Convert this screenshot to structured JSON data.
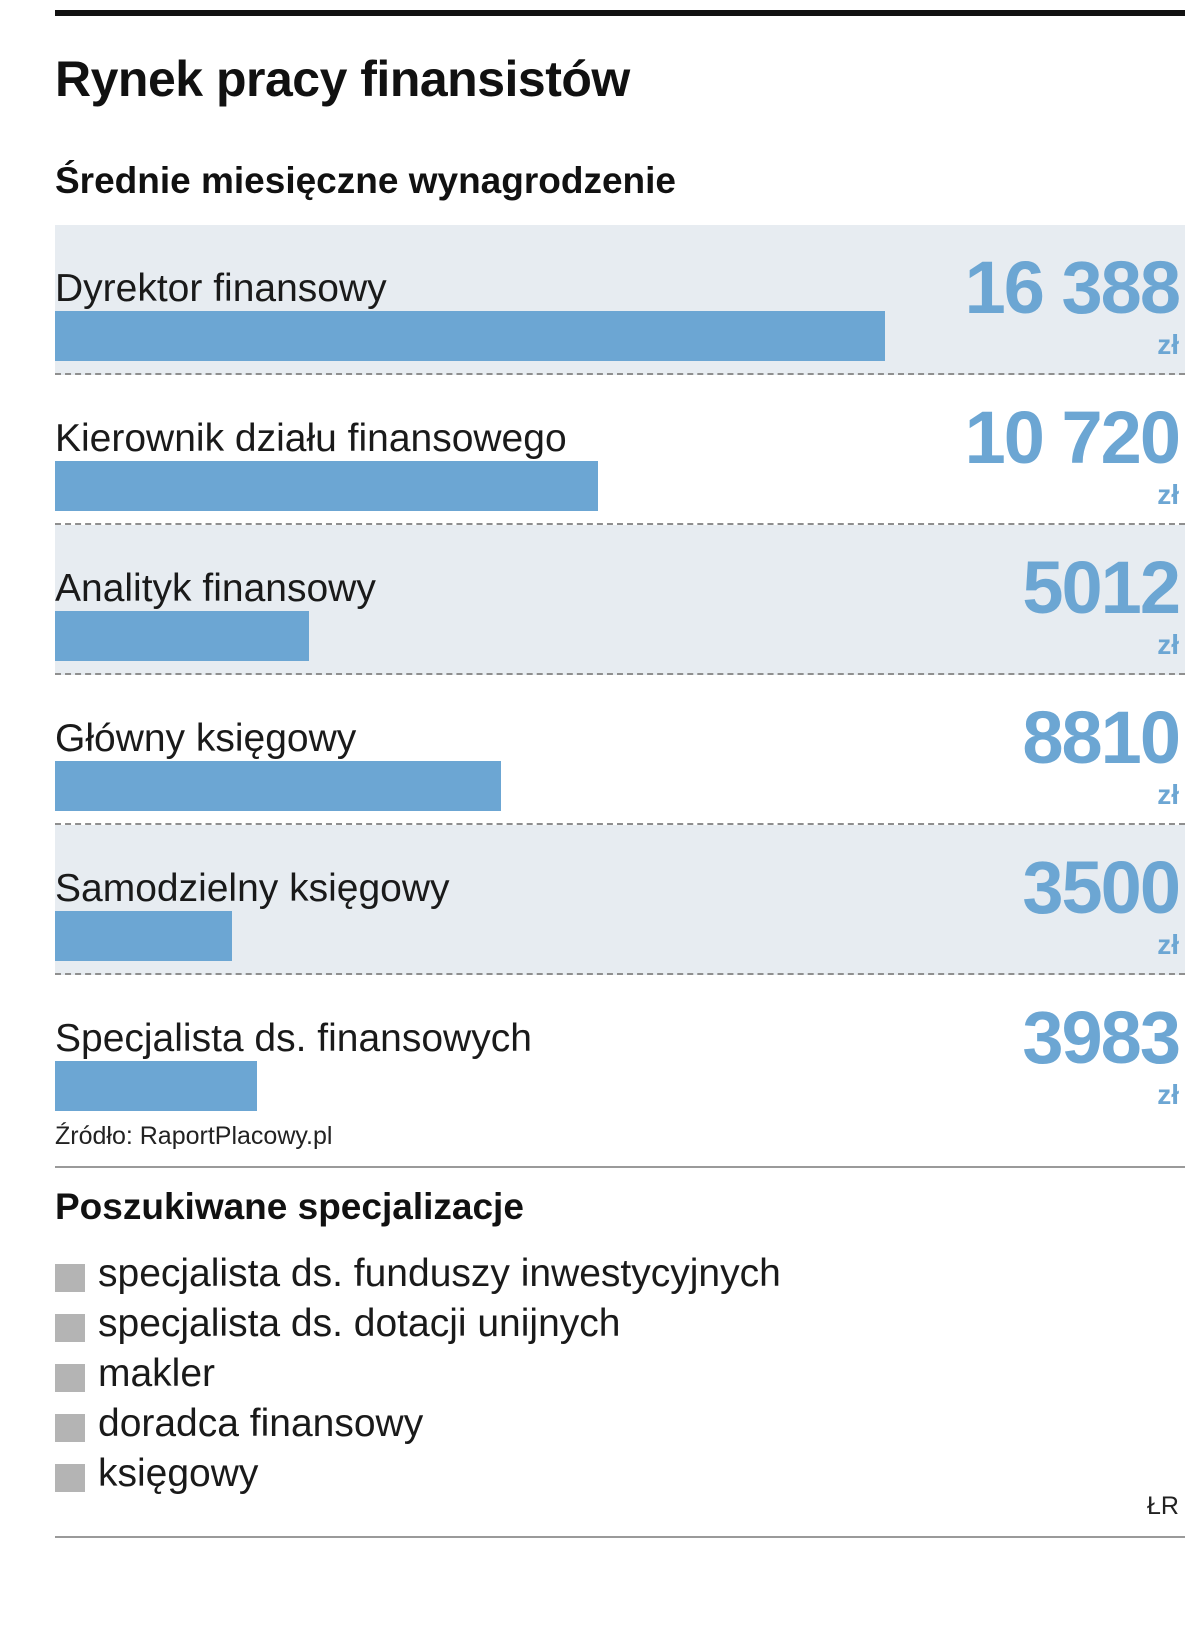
{
  "header": {
    "title": "Rynek pracy finansistów",
    "subtitle": "Średnie miesięczne wynagrodzenie"
  },
  "chart_data": {
    "type": "bar",
    "orientation": "horizontal",
    "title": "Średnie miesięczne wynagrodzenie",
    "unit": "zł",
    "categories": [
      "Dyrektor finansowy",
      "Kierownik działu finansowego",
      "Analityk finansowy",
      "Główny księgowy",
      "Samodzielny księgowy",
      "Specjalista ds. finansowych"
    ],
    "values": [
      16388,
      10720,
      5012,
      8810,
      3500,
      3983
    ],
    "value_labels": [
      "16 388",
      "10 720",
      "5012",
      "8810",
      "3500",
      "3983"
    ],
    "xlim": [
      0,
      22300
    ],
    "grid": false,
    "bar_color": "#6ca6d3",
    "row_shade_color": "#e7ecf1"
  },
  "source": "Źródło: RaportPlacowy.pl",
  "specializations": {
    "heading": "Poszukiwane specjalizacje",
    "items": [
      "specjalista ds. funduszy inwestycyjnych",
      "specjalista ds. dotacji unijnych",
      "makler",
      "doradca finansowy",
      "księgowy"
    ],
    "bullet_color": "#b4b4b4"
  },
  "credit": "ŁR"
}
